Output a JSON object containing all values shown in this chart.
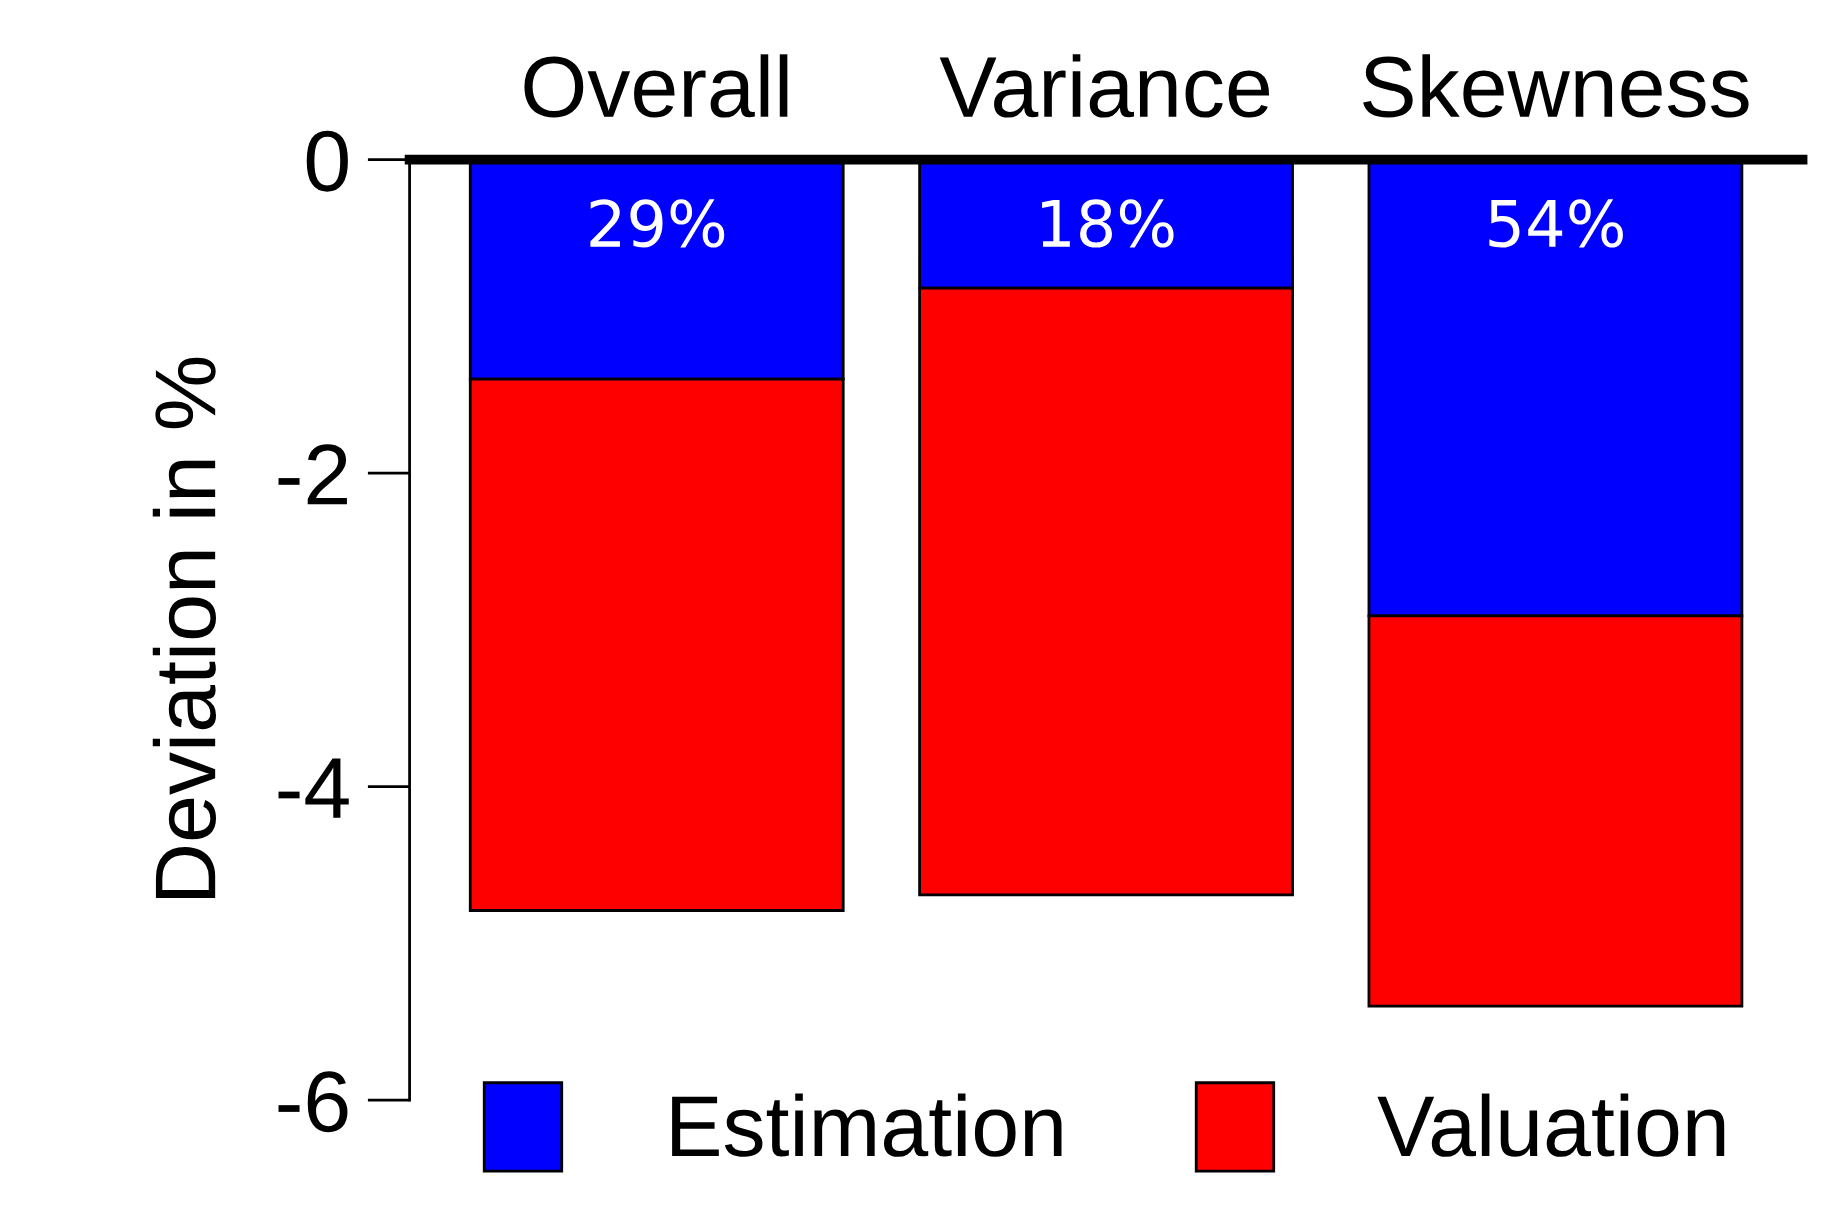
{
  "chart_data": {
    "type": "bar",
    "stacked": true,
    "ylabel": "Deviation in %",
    "categories": [
      "Overall",
      "Variance",
      "Skewness"
    ],
    "series": [
      {
        "name": "Estimation",
        "color": "#0000ff",
        "values": [
          -1.4,
          -0.82,
          -2.91
        ]
      },
      {
        "name": "Valuation",
        "color": "#ff0000",
        "values": [
          -3.39,
          -3.87,
          -2.49
        ]
      }
    ],
    "annotations": [
      "29%",
      "18%",
      "54%"
    ],
    "ylim": [
      -6,
      0
    ],
    "yticks": [
      -6,
      -4,
      -2,
      0
    ],
    "grid": false,
    "legend": "bottom"
  }
}
